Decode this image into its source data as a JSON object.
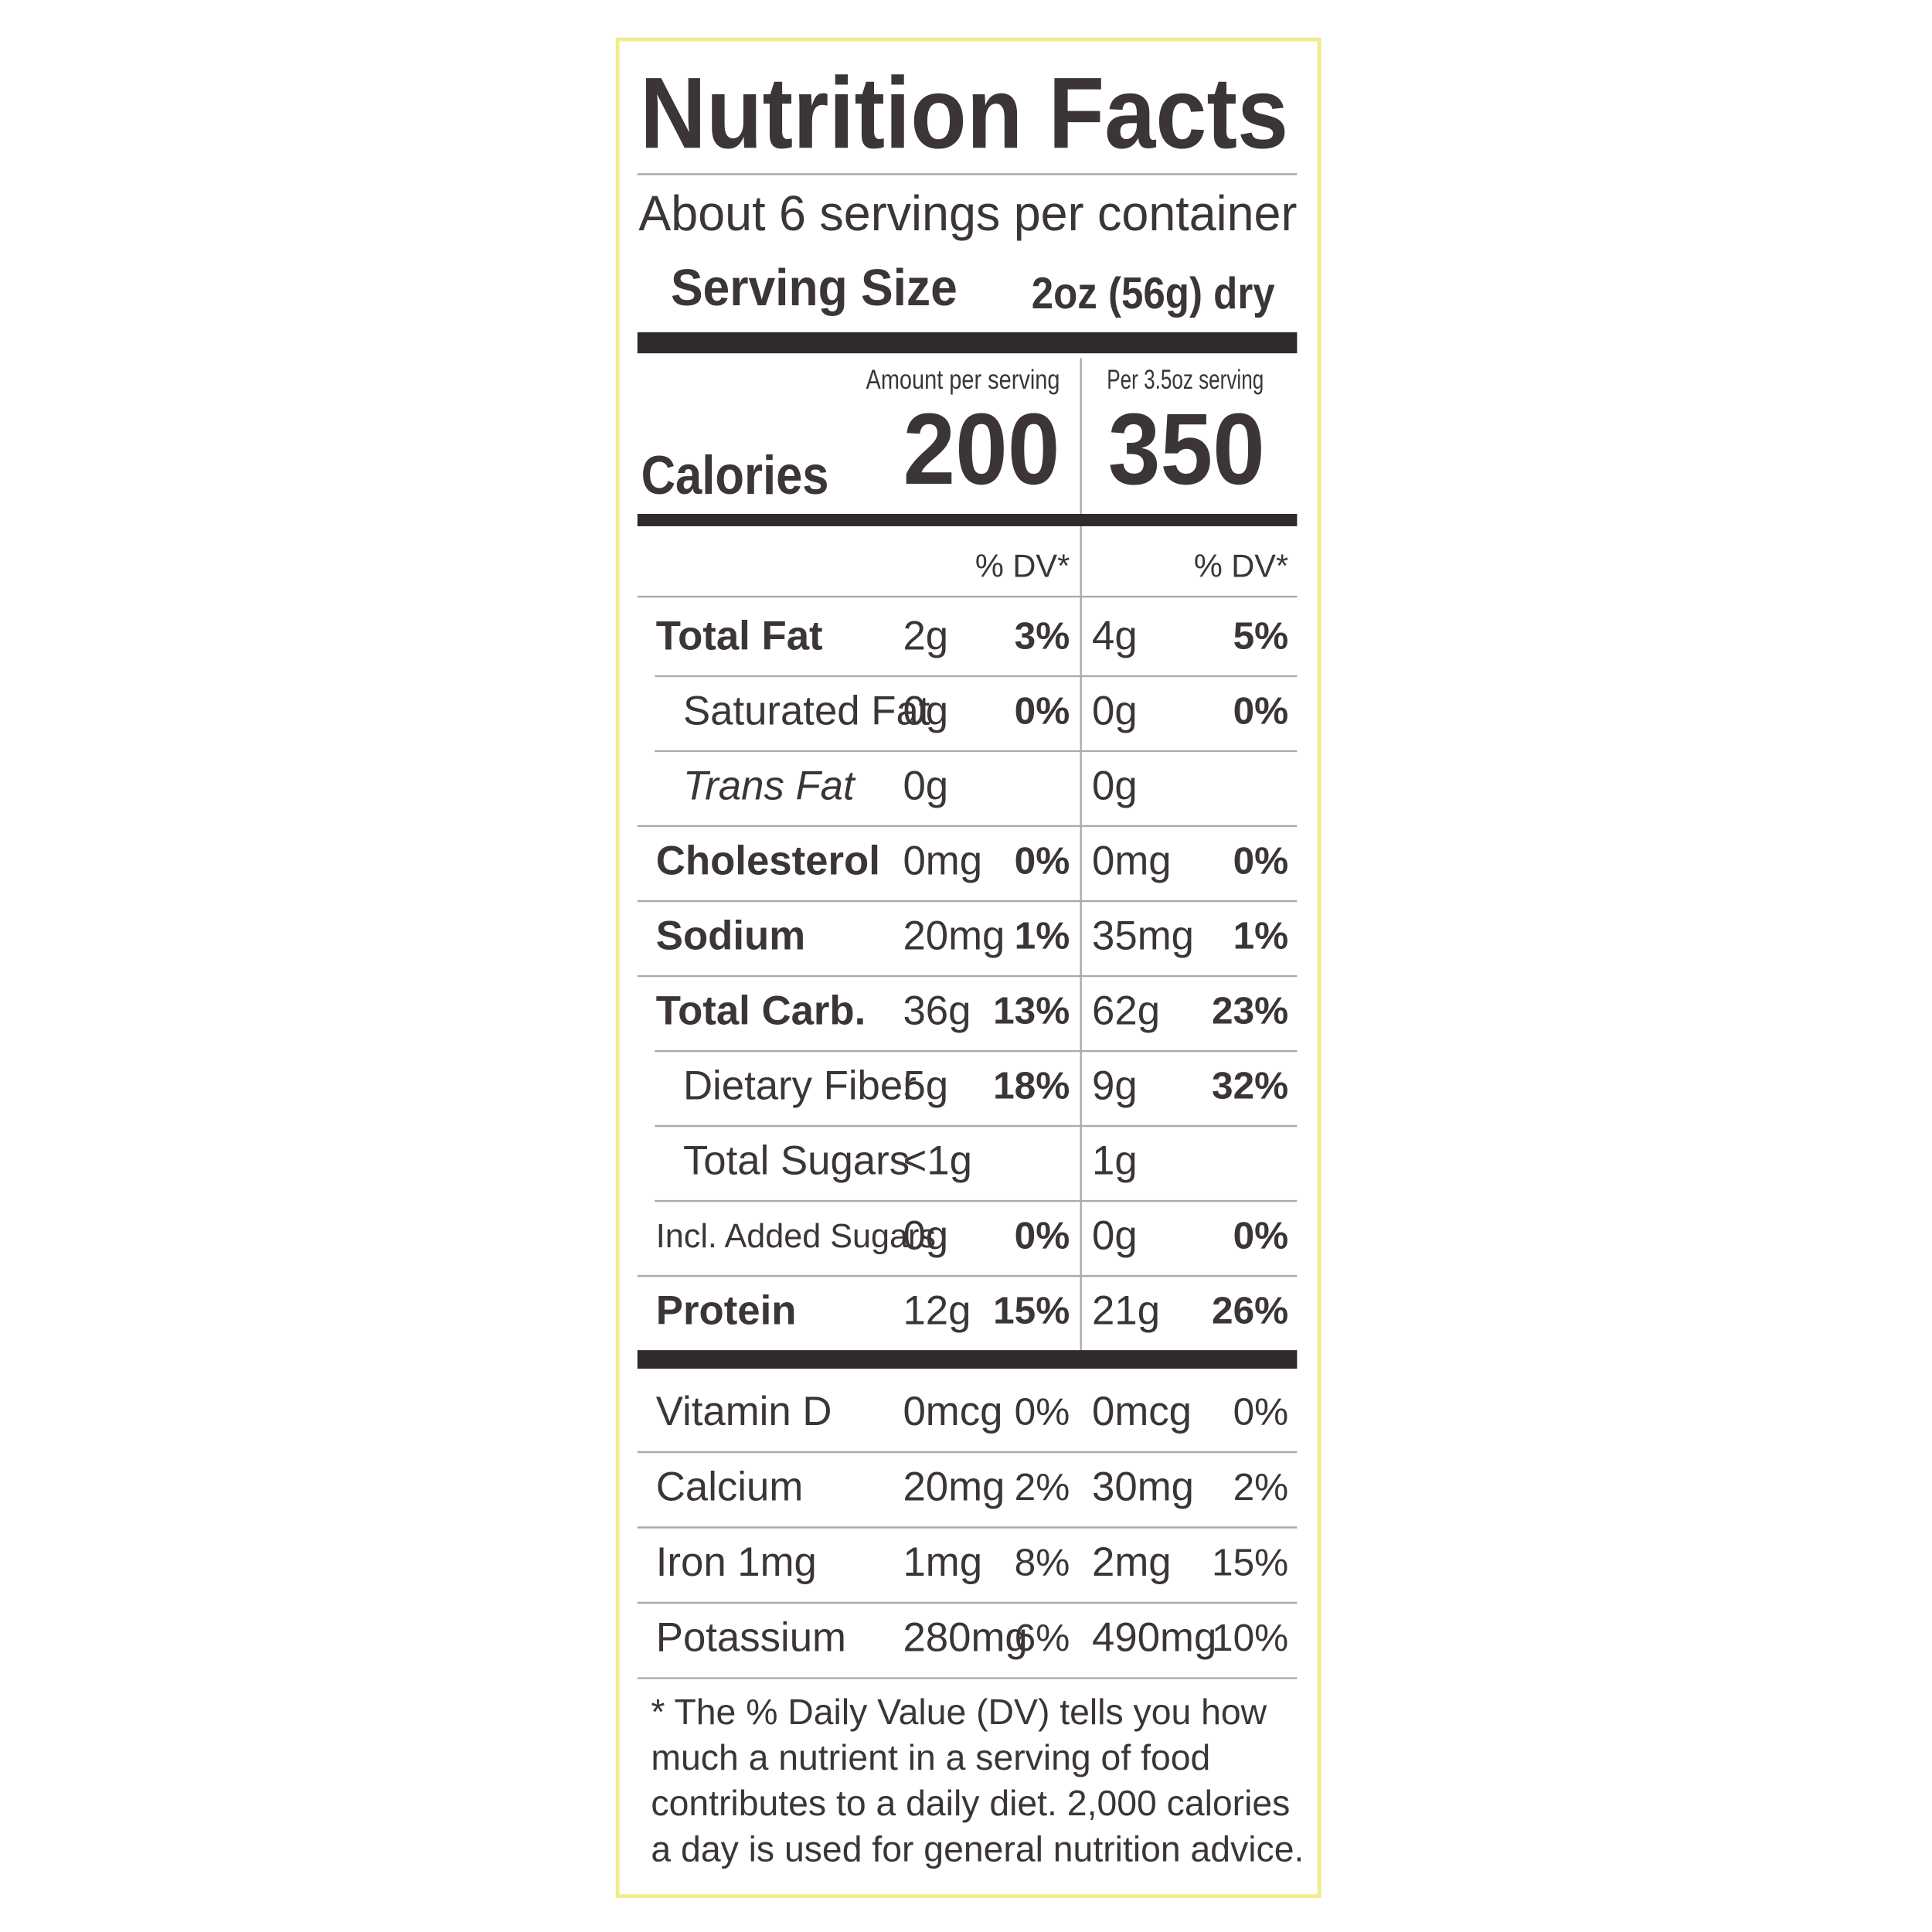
{
  "title": "Nutrition Facts",
  "servings": "About 6 servings per container",
  "serving_size": {
    "label": "Serving Size",
    "value": "2oz (56g) dry"
  },
  "columns": [
    "Amount per serving",
    "Per 3.5oz serving"
  ],
  "calories": {
    "label": "Calories",
    "values": [
      "200",
      "350"
    ]
  },
  "dv_header": [
    "% DV*",
    "% DV*"
  ],
  "nutrients": [
    {
      "name": "Total Fat",
      "amount": "2g",
      "dv": "3%",
      "amount_alt": "4g",
      "dv_alt": "5%"
    },
    {
      "name": "Saturated Fat",
      "amount": "0g",
      "dv": "0%",
      "amount_alt": "0g",
      "dv_alt": "0%"
    },
    {
      "name": "Trans Fat",
      "amount": "0g",
      "amount_alt": "0g"
    },
    {
      "name": "Cholesterol",
      "amount": "0mg",
      "dv": "0%",
      "amount_alt": "0mg",
      "dv_alt": "0%"
    },
    {
      "name": "Sodium",
      "amount": "20mg",
      "dv": "1%",
      "amount_alt": "35mg",
      "dv_alt": "1%"
    },
    {
      "name": "Total Carb.",
      "amount": "36g",
      "dv": "13%",
      "amount_alt": "62g",
      "dv_alt": "23%"
    },
    {
      "name": "Dietary Fiber",
      "amount": "5g",
      "dv": "18%",
      "amount_alt": "9g",
      "dv_alt": "32%"
    },
    {
      "name": "Total Sugars",
      "amount": "<1g",
      "amount_alt": "1g"
    },
    {
      "name": "Incl. Added Sugars",
      "amount": "0g",
      "dv": "0%",
      "amount_alt": "0g",
      "dv_alt": "0%"
    },
    {
      "name": "Protein",
      "amount": "12g",
      "dv": "15%",
      "amount_alt": "21g",
      "dv_alt": "26%"
    }
  ],
  "vitamins": [
    {
      "name": "Vitamin D",
      "amount": "0mcg",
      "dv": "0%",
      "amount_alt": "0mcg",
      "dv_alt": "0%"
    },
    {
      "name": "Calcium",
      "amount": "20mg",
      "dv": "2%",
      "amount_alt": "30mg",
      "dv_alt": "2%"
    },
    {
      "name": "Iron 1mg",
      "amount": "1mg",
      "dv": "8%",
      "amount_alt": "2mg",
      "dv_alt": "15%"
    },
    {
      "name": "Potassium",
      "amount": "280mg",
      "dv": "6%",
      "amount_alt": "490mg",
      "dv_alt": "10%"
    }
  ],
  "footnote": [
    "* The % Daily Value (DV) tells you how",
    "much a nutrient in a serving of food",
    "contributes to a daily diet. 2,000 calories",
    "a day is used for general nutrition advice."
  ]
}
